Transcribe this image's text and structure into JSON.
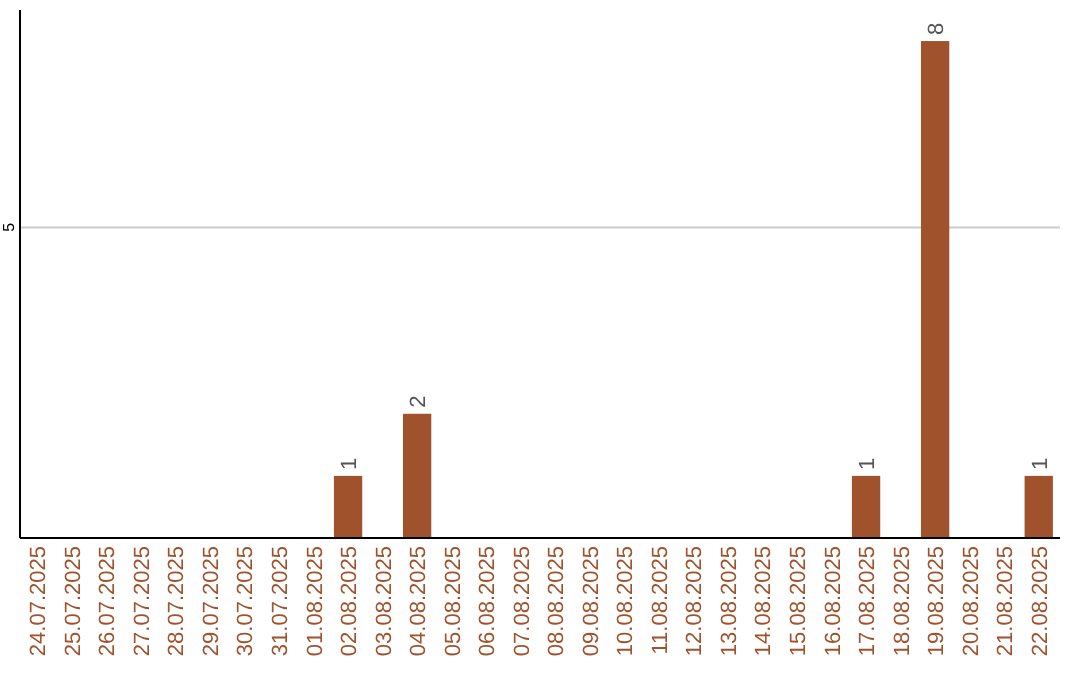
{
  "chart_data": {
    "type": "bar",
    "categories": [
      "24.07.2025",
      "25.07.2025",
      "26.07.2025",
      "27.07.2025",
      "28.07.2025",
      "29.07.2025",
      "30.07.2025",
      "31.07.2025",
      "01.08.2025",
      "02.08.2025",
      "03.08.2025",
      "04.08.2025",
      "05.08.2025",
      "06.08.2025",
      "07.08.2025",
      "08.08.2025",
      "09.08.2025",
      "10.08.2025",
      "11.08.2025",
      "12.08.2025",
      "13.08.2025",
      "14.08.2025",
      "15.08.2025",
      "16.08.2025",
      "17.08.2025",
      "18.08.2025",
      "19.08.2025",
      "20.08.2025",
      "21.08.2025",
      "22.08.2025"
    ],
    "values": [
      0,
      0,
      0,
      0,
      0,
      0,
      0,
      0,
      0,
      1,
      0,
      2,
      0,
      0,
      0,
      0,
      0,
      0,
      0,
      0,
      0,
      0,
      0,
      0,
      1,
      0,
      8,
      0,
      0,
      1
    ],
    "value_labels": [
      null,
      null,
      null,
      null,
      null,
      null,
      null,
      null,
      null,
      "1",
      null,
      "2",
      null,
      null,
      null,
      null,
      null,
      null,
      null,
      null,
      null,
      null,
      null,
      null,
      "1",
      null,
      "8",
      null,
      null,
      "1"
    ],
    "color": "#a0522d",
    "ylim": [
      0,
      8.5
    ],
    "yticks": [
      5
    ],
    "grid": "y"
  }
}
